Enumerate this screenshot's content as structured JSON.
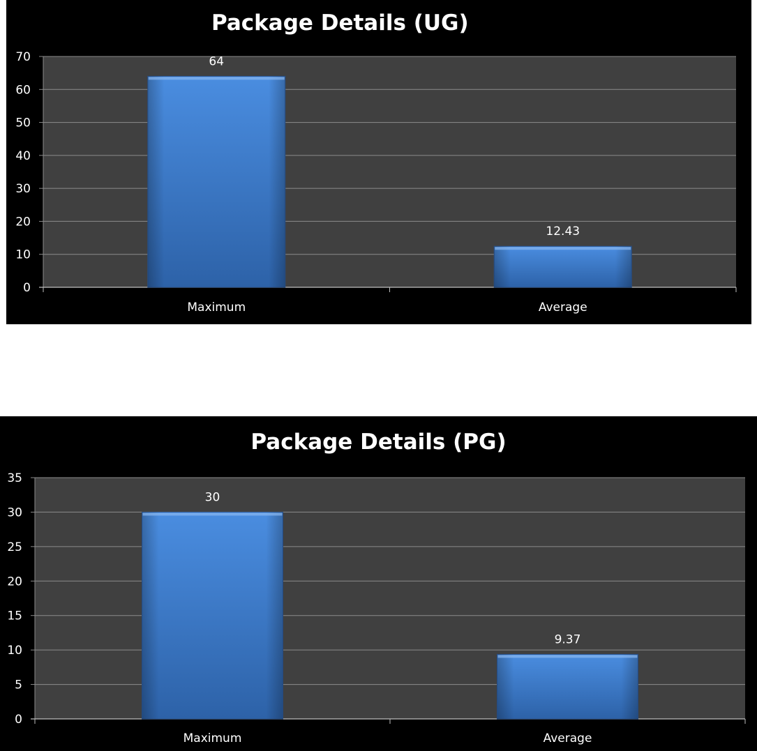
{
  "chart_data": [
    {
      "type": "bar",
      "title": "Package Details (UG)",
      "categories": [
        "Maximum",
        "Average"
      ],
      "values": [
        64,
        12.43
      ],
      "value_labels": [
        "64",
        "12.43"
      ],
      "ylim": [
        0,
        70
      ],
      "yticks": [
        0,
        10,
        20,
        30,
        40,
        50,
        60,
        70
      ],
      "xlabel": "",
      "ylabel": "",
      "grid": true,
      "legend": "none"
    },
    {
      "type": "bar",
      "title": "Package Details (PG)",
      "categories": [
        "Maximum",
        "Average"
      ],
      "values": [
        30,
        9.37
      ],
      "value_labels": [
        "30",
        "9.37"
      ],
      "ylim": [
        0,
        35
      ],
      "yticks": [
        0,
        5,
        10,
        15,
        20,
        25,
        30,
        35
      ],
      "xlabel": "",
      "ylabel": "",
      "grid": true,
      "legend": "none"
    }
  ],
  "colors": {
    "panel_background": "#000000",
    "plot_background": "#404040",
    "gridline": "#8c8c8c",
    "bar_top": "#4a8de0",
    "bar_bottom": "#2d62a8",
    "text": "#ffffff"
  }
}
